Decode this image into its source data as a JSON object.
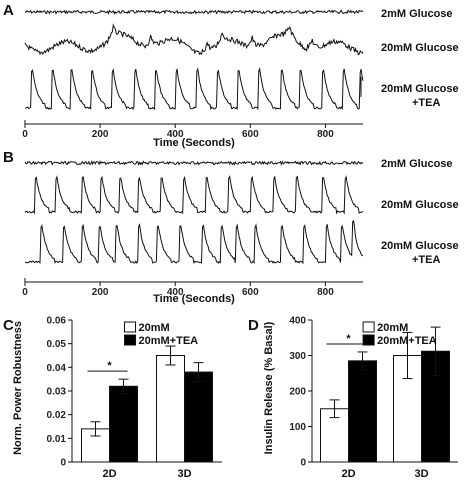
{
  "panels": {
    "A": "A",
    "B": "B",
    "C": "C",
    "D": "D"
  },
  "chart_data": [
    {
      "type": "line",
      "panel": "A",
      "xlabel": "Time (Seconds)",
      "xticks": [
        0,
        200,
        400,
        600,
        800
      ],
      "xlim": [
        0,
        900
      ],
      "series": [
        {
          "name": "2mM Glucose",
          "pattern": "flat"
        },
        {
          "name": "20mM Glucose",
          "pattern": "irregular"
        },
        {
          "name": "20mM Glucose +TEA",
          "name_lines": [
            "20mM Glucose",
            "+TEA"
          ],
          "pattern": "spikes",
          "spike_times": [
            15,
            70,
            120,
            175,
            230,
            290,
            345,
            400,
            455,
            510,
            565,
            620,
            680,
            730,
            790,
            845,
            890
          ]
        }
      ]
    },
    {
      "type": "line",
      "panel": "B",
      "xlabel": "Time (Seconds)",
      "xticks": [
        0,
        200,
        400,
        600,
        800
      ],
      "xlim": [
        0,
        900
      ],
      "series": [
        {
          "name": "2mM Glucose",
          "pattern": "flat"
        },
        {
          "name": "20mM Glucose",
          "pattern": "spikes",
          "spike_times": [
            25,
            80,
            150,
            200,
            250,
            300,
            360,
            420,
            480,
            540,
            600,
            660,
            720,
            790,
            850
          ]
        },
        {
          "name": "20mM Glucose +TEA",
          "name_lines": [
            "20mM Glucose",
            "+TEA"
          ],
          "pattern": "spikes",
          "spike_times": [
            40,
            100,
            150,
            195,
            240,
            300,
            350,
            410,
            470,
            520,
            560,
            610,
            680,
            740,
            800,
            840,
            870
          ]
        }
      ]
    },
    {
      "type": "bar",
      "panel": "C",
      "categories": [
        "2D",
        "3D"
      ],
      "ylabel": "Norm. Power Robustness",
      "ylim": [
        0,
        0.06
      ],
      "yticks": [
        0,
        0.01,
        0.02,
        0.03,
        0.04,
        0.05,
        0.06
      ],
      "series": [
        {
          "name": "20mM",
          "values": [
            0.014,
            0.045
          ],
          "errors": [
            0.003,
            0.004
          ],
          "color": "#ffffff"
        },
        {
          "name": "20mM+TEA",
          "values": [
            0.032,
            0.038
          ],
          "errors": [
            0.003,
            0.004
          ],
          "color": "#000000"
        }
      ],
      "significance": {
        "category": "2D",
        "label": "*"
      },
      "legend": "top-center"
    },
    {
      "type": "bar",
      "panel": "D",
      "categories": [
        "2D",
        "3D"
      ],
      "ylabel": "Insulin Release (% Basal)",
      "ylim": [
        0,
        400
      ],
      "yticks": [
        0,
        100,
        200,
        300,
        400
      ],
      "series": [
        {
          "name": "20mM",
          "values": [
            150,
            300
          ],
          "errors": [
            25,
            65
          ],
          "color": "#ffffff"
        },
        {
          "name": "20mM+TEA",
          "values": [
            285,
            312
          ],
          "errors": [
            25,
            68
          ],
          "color": "#000000"
        }
      ],
      "significance": {
        "category": "2D",
        "label": "*"
      },
      "legend": "top-center"
    }
  ]
}
